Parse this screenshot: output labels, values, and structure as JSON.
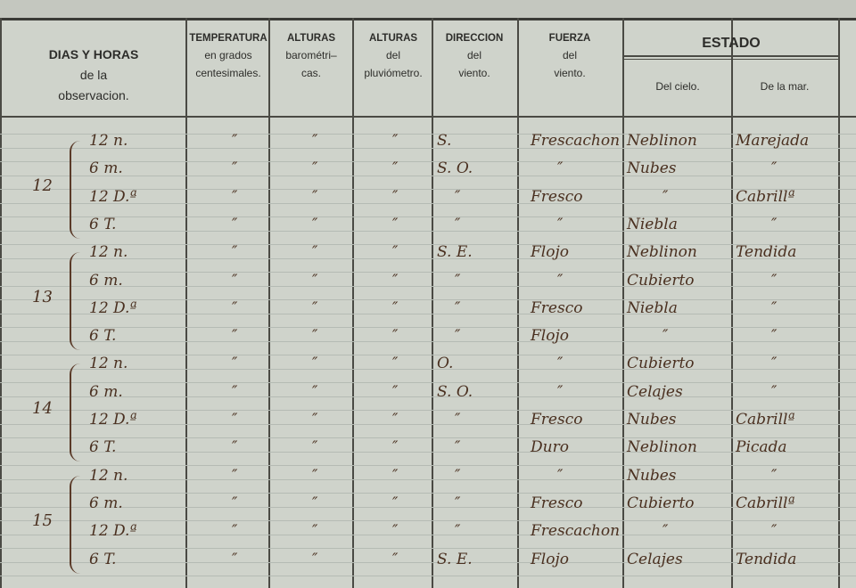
{
  "header": {
    "dias": [
      "DIAS Y HORAS",
      "de la",
      "observacion."
    ],
    "temperatura": [
      "TEMPERATURA",
      "en grados",
      "centesimales."
    ],
    "alturas_barometricas": [
      "ALTURAS",
      "barométri–",
      "cas."
    ],
    "alturas_pluviometro": [
      "ALTURAS",
      "del",
      "pluviómetro."
    ],
    "direccion": [
      "DIRECCION",
      "del",
      "viento."
    ],
    "fuerza": [
      "FUERZA",
      "del",
      "viento."
    ],
    "estado": "ESTADO",
    "del_cielo": "Del cielo.",
    "de_la_mar": "De la mar."
  },
  "days": [
    {
      "day": "12",
      "rows": [
        {
          "hora": "12 n.",
          "temp": "″",
          "baro": "″",
          "pluvio": "″",
          "dir": "S.",
          "fuerza": "Frescachon",
          "cielo": "Neblinon",
          "mar": "Marejada"
        },
        {
          "hora": "6 m.",
          "temp": "″",
          "baro": "″",
          "pluvio": "″",
          "dir": "S. O.",
          "fuerza": "″",
          "cielo": "Nubes",
          "mar": "″"
        },
        {
          "hora": "12 D.ª",
          "temp": "″",
          "baro": "″",
          "pluvio": "″",
          "dir": "″",
          "fuerza": "Fresco",
          "cielo": "″",
          "mar": "Cabrillª"
        },
        {
          "hora": "6 T.",
          "temp": "″",
          "baro": "″",
          "pluvio": "″",
          "dir": "″",
          "fuerza": "″",
          "cielo": "Niebla",
          "mar": "″"
        }
      ]
    },
    {
      "day": "13",
      "rows": [
        {
          "hora": "12 n.",
          "temp": "″",
          "baro": "″",
          "pluvio": "″",
          "dir": "S. E.",
          "fuerza": "Flojo",
          "cielo": "Neblinon",
          "mar": "Tendida"
        },
        {
          "hora": "6 m.",
          "temp": "″",
          "baro": "″",
          "pluvio": "″",
          "dir": "″",
          "fuerza": "″",
          "cielo": "Cubierto",
          "mar": "″"
        },
        {
          "hora": "12 D.ª",
          "temp": "″",
          "baro": "″",
          "pluvio": "″",
          "dir": "″",
          "fuerza": "Fresco",
          "cielo": "Niebla",
          "mar": "″"
        },
        {
          "hora": "6 T.",
          "temp": "″",
          "baro": "″",
          "pluvio": "″",
          "dir": "″",
          "fuerza": "Flojo",
          "cielo": "″",
          "mar": "″"
        }
      ]
    },
    {
      "day": "14",
      "rows": [
        {
          "hora": "12 n.",
          "temp": "″",
          "baro": "″",
          "pluvio": "″",
          "dir": "O.",
          "fuerza": "″",
          "cielo": "Cubierto",
          "mar": "″"
        },
        {
          "hora": "6 m.",
          "temp": "″",
          "baro": "″",
          "pluvio": "″",
          "dir": "S. O.",
          "fuerza": "″",
          "cielo": "Celajes",
          "mar": "″"
        },
        {
          "hora": "12 D.ª",
          "temp": "″",
          "baro": "″",
          "pluvio": "″",
          "dir": "″",
          "fuerza": "Fresco",
          "cielo": "Nubes",
          "mar": "Cabrillª"
        },
        {
          "hora": "6 T.",
          "temp": "″",
          "baro": "″",
          "pluvio": "″",
          "dir": "″",
          "fuerza": "Duro",
          "cielo": "Neblinon",
          "mar": "Picada"
        }
      ]
    },
    {
      "day": "15",
      "rows": [
        {
          "hora": "12 n.",
          "temp": "″",
          "baro": "″",
          "pluvio": "″",
          "dir": "″",
          "fuerza": "″",
          "cielo": "Nubes",
          "mar": "″"
        },
        {
          "hora": "6 m.",
          "temp": "″",
          "baro": "″",
          "pluvio": "″",
          "dir": "″",
          "fuerza": "Fresco",
          "cielo": "Cubierto",
          "mar": "Cabrillª"
        },
        {
          "hora": "12 D.ª",
          "temp": "″",
          "baro": "″",
          "pluvio": "″",
          "dir": "″",
          "fuerza": "Frescachon",
          "cielo": "″",
          "mar": "″"
        },
        {
          "hora": "6 T.",
          "temp": "″",
          "baro": "″",
          "pluvio": "″",
          "dir": "S. E.",
          "fuerza": "Flojo",
          "cielo": "Celajes",
          "mar": "Tendida"
        }
      ]
    }
  ]
}
